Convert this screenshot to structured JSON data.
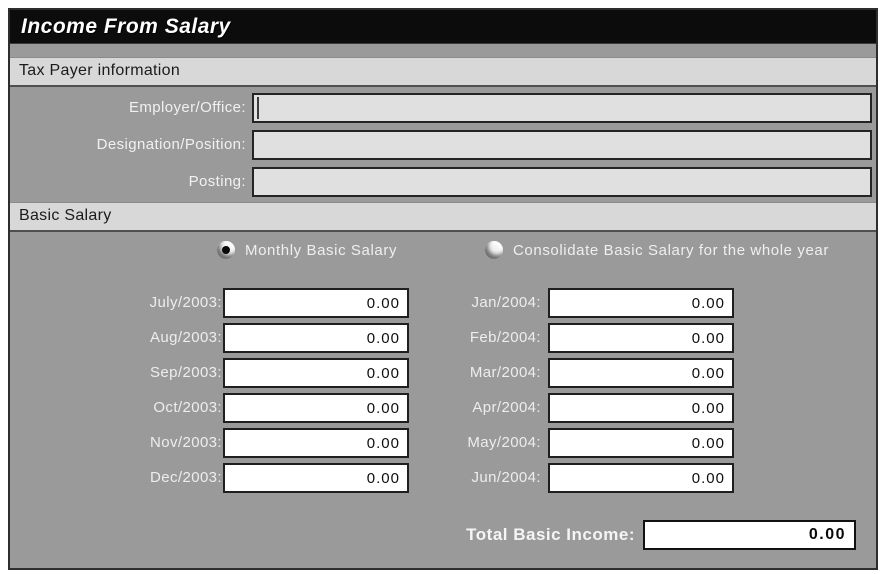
{
  "window": {
    "title": "Income From Salary"
  },
  "colors": {
    "title_bar_bg": "#0c0c0c",
    "body_bg": "#9a9a9a",
    "section_bar_bg": "#d8d8d8",
    "text_field_bg": "#e0e0e0",
    "amount_field_bg": "#ffffff",
    "label_text": "#f1f1f1"
  },
  "taxpayer": {
    "header": "Tax Payer information",
    "fields": [
      {
        "label": "Employer/Office:",
        "value": ""
      },
      {
        "label": "Designation/Position:",
        "value": ""
      },
      {
        "label": "Posting:",
        "value": ""
      }
    ]
  },
  "basic_salary": {
    "header": "Basic Salary",
    "radio_options": [
      {
        "label": "Monthly Basic Salary",
        "selected": true
      },
      {
        "label": "Consolidate Basic Salary for the whole year",
        "selected": false
      }
    ],
    "months_left": [
      {
        "label": "July/2003:",
        "value": "0.00"
      },
      {
        "label": "Aug/2003:",
        "value": "0.00"
      },
      {
        "label": "Sep/2003:",
        "value": "0.00"
      },
      {
        "label": "Oct/2003:",
        "value": "0.00"
      },
      {
        "label": "Nov/2003:",
        "value": "0.00"
      },
      {
        "label": "Dec/2003:",
        "value": "0.00"
      }
    ],
    "months_right": [
      {
        "label": "Jan/2004:",
        "value": "0.00"
      },
      {
        "label": "Feb/2004:",
        "value": "0.00"
      },
      {
        "label": "Mar/2004:",
        "value": "0.00"
      },
      {
        "label": "Apr/2004:",
        "value": "0.00"
      },
      {
        "label": "May/2004:",
        "value": "0.00"
      },
      {
        "label": "Jun/2004:",
        "value": "0.00"
      }
    ],
    "total": {
      "label": "Total Basic Income:",
      "value": "0.00"
    }
  }
}
